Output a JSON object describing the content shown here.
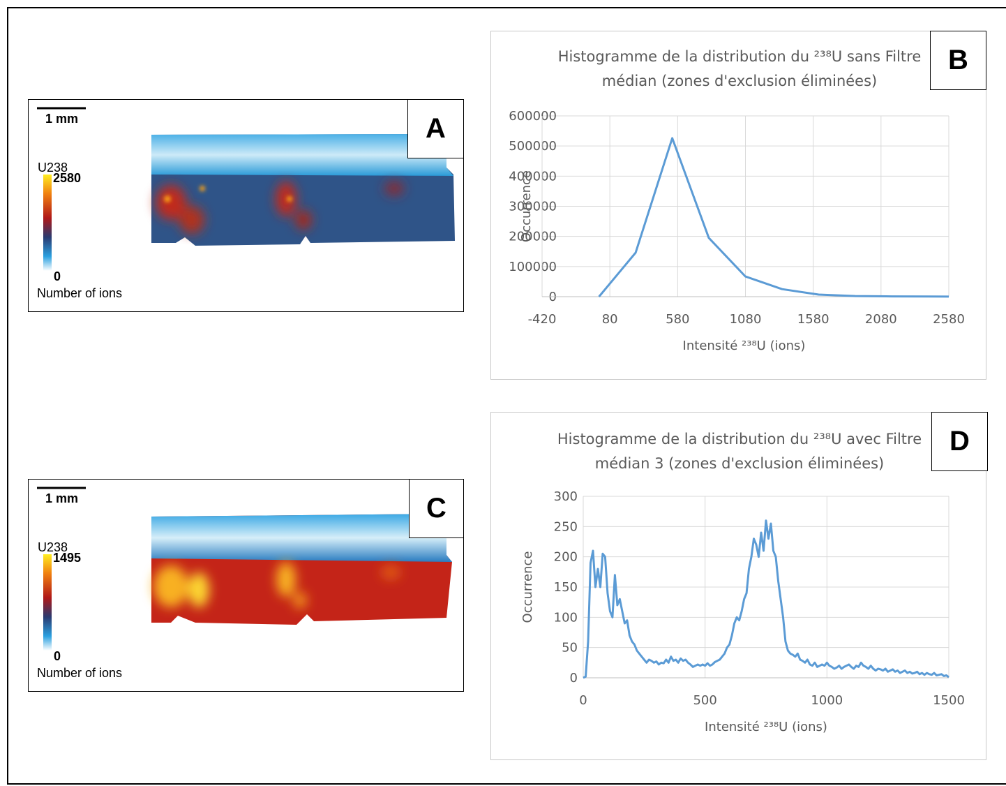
{
  "panels": [
    {
      "label": "A",
      "scale_bar": "1 mm",
      "colorbar_title": "U238",
      "colorbar_max": 2580,
      "colorbar_min": 0,
      "colorbar_caption": "Number of ions"
    },
    {
      "label": "C",
      "scale_bar": "1 mm",
      "colorbar_title": "U238",
      "colorbar_max": 1495,
      "colorbar_min": 0,
      "colorbar_caption": "Number of ions"
    }
  ],
  "chart_data": [
    {
      "type": "line",
      "panel_label": "B",
      "title": "Histogramme de la distribution du ²³⁸U sans Filtre médian (zones d'exclusion éliminées)",
      "x_label": "Intensité ²³⁸U (ions)",
      "y_label": "Occurrence",
      "color": "#5b9bd5",
      "grid": true,
      "x": [
        0,
        270,
        540,
        810,
        1080,
        1350,
        1620,
        1890,
        2160,
        2430,
        2580
      ],
      "values": [
        0,
        146000,
        526000,
        195000,
        67000,
        25000,
        7000,
        2000,
        1000,
        500,
        300
      ],
      "xlim": [
        -420,
        2580
      ],
      "xticks": [
        -420,
        80,
        580,
        1080,
        1580,
        2080,
        2580
      ],
      "ylim": [
        0,
        600000
      ],
      "yticks": [
        0,
        100000,
        200000,
        300000,
        400000,
        500000,
        600000
      ]
    },
    {
      "type": "line",
      "panel_label": "D",
      "title": "Histogramme de la distribution du ²³⁸U avec Filtre médian 3 (zones d'exclusion éliminées)",
      "x_label": "Intensité ²³⁸U (ions)",
      "y_label": "Occurrence",
      "color": "#5b9bd5",
      "grid": true,
      "x": [
        0,
        10,
        20,
        30,
        40,
        50,
        60,
        70,
        80,
        90,
        100,
        110,
        120,
        130,
        140,
        150,
        160,
        170,
        180,
        190,
        200,
        210,
        220,
        230,
        240,
        250,
        260,
        270,
        280,
        290,
        300,
        310,
        320,
        330,
        340,
        350,
        360,
        370,
        380,
        390,
        400,
        410,
        420,
        430,
        440,
        450,
        460,
        470,
        480,
        490,
        500,
        510,
        520,
        530,
        540,
        550,
        560,
        570,
        580,
        590,
        600,
        610,
        620,
        630,
        640,
        650,
        660,
        670,
        680,
        690,
        700,
        710,
        720,
        730,
        740,
        750,
        760,
        770,
        780,
        790,
        800,
        810,
        820,
        830,
        840,
        850,
        860,
        870,
        880,
        890,
        900,
        910,
        920,
        930,
        940,
        950,
        960,
        970,
        980,
        990,
        1000,
        1010,
        1020,
        1030,
        1040,
        1050,
        1060,
        1070,
        1080,
        1090,
        1100,
        1110,
        1120,
        1130,
        1140,
        1150,
        1160,
        1170,
        1180,
        1190,
        1200,
        1210,
        1220,
        1230,
        1240,
        1250,
        1260,
        1270,
        1280,
        1290,
        1300,
        1310,
        1320,
        1330,
        1340,
        1350,
        1360,
        1370,
        1380,
        1390,
        1400,
        1410,
        1420,
        1430,
        1440,
        1450,
        1460,
        1470,
        1480,
        1490,
        1500
      ],
      "values": [
        0,
        2,
        60,
        190,
        210,
        150,
        180,
        150,
        205,
        200,
        140,
        110,
        100,
        170,
        120,
        130,
        110,
        90,
        95,
        70,
        60,
        55,
        45,
        40,
        35,
        30,
        25,
        30,
        28,
        25,
        27,
        22,
        25,
        24,
        30,
        25,
        35,
        28,
        30,
        25,
        32,
        28,
        30,
        25,
        22,
        18,
        20,
        22,
        20,
        22,
        20,
        24,
        20,
        22,
        26,
        28,
        30,
        35,
        40,
        50,
        55,
        70,
        90,
        100,
        95,
        110,
        130,
        140,
        180,
        200,
        230,
        220,
        200,
        240,
        210,
        260,
        230,
        255,
        210,
        200,
        160,
        130,
        100,
        60,
        45,
        40,
        38,
        35,
        40,
        30,
        28,
        25,
        30,
        22,
        20,
        25,
        18,
        20,
        22,
        20,
        25,
        20,
        18,
        15,
        17,
        20,
        15,
        18,
        20,
        22,
        18,
        15,
        20,
        18,
        25,
        20,
        18,
        15,
        20,
        15,
        12,
        15,
        14,
        12,
        15,
        10,
        12,
        14,
        10,
        12,
        8,
        10,
        12,
        8,
        10,
        7,
        8,
        10,
        6,
        8,
        5,
        8,
        6,
        5,
        8,
        4,
        5,
        6,
        3,
        4,
        1
      ],
      "xlim": [
        0,
        1500
      ],
      "xticks": [
        0,
        500,
        1000,
        1500
      ],
      "ylim": [
        0,
        300
      ],
      "yticks": [
        0,
        50,
        100,
        150,
        200,
        250,
        300
      ]
    }
  ]
}
